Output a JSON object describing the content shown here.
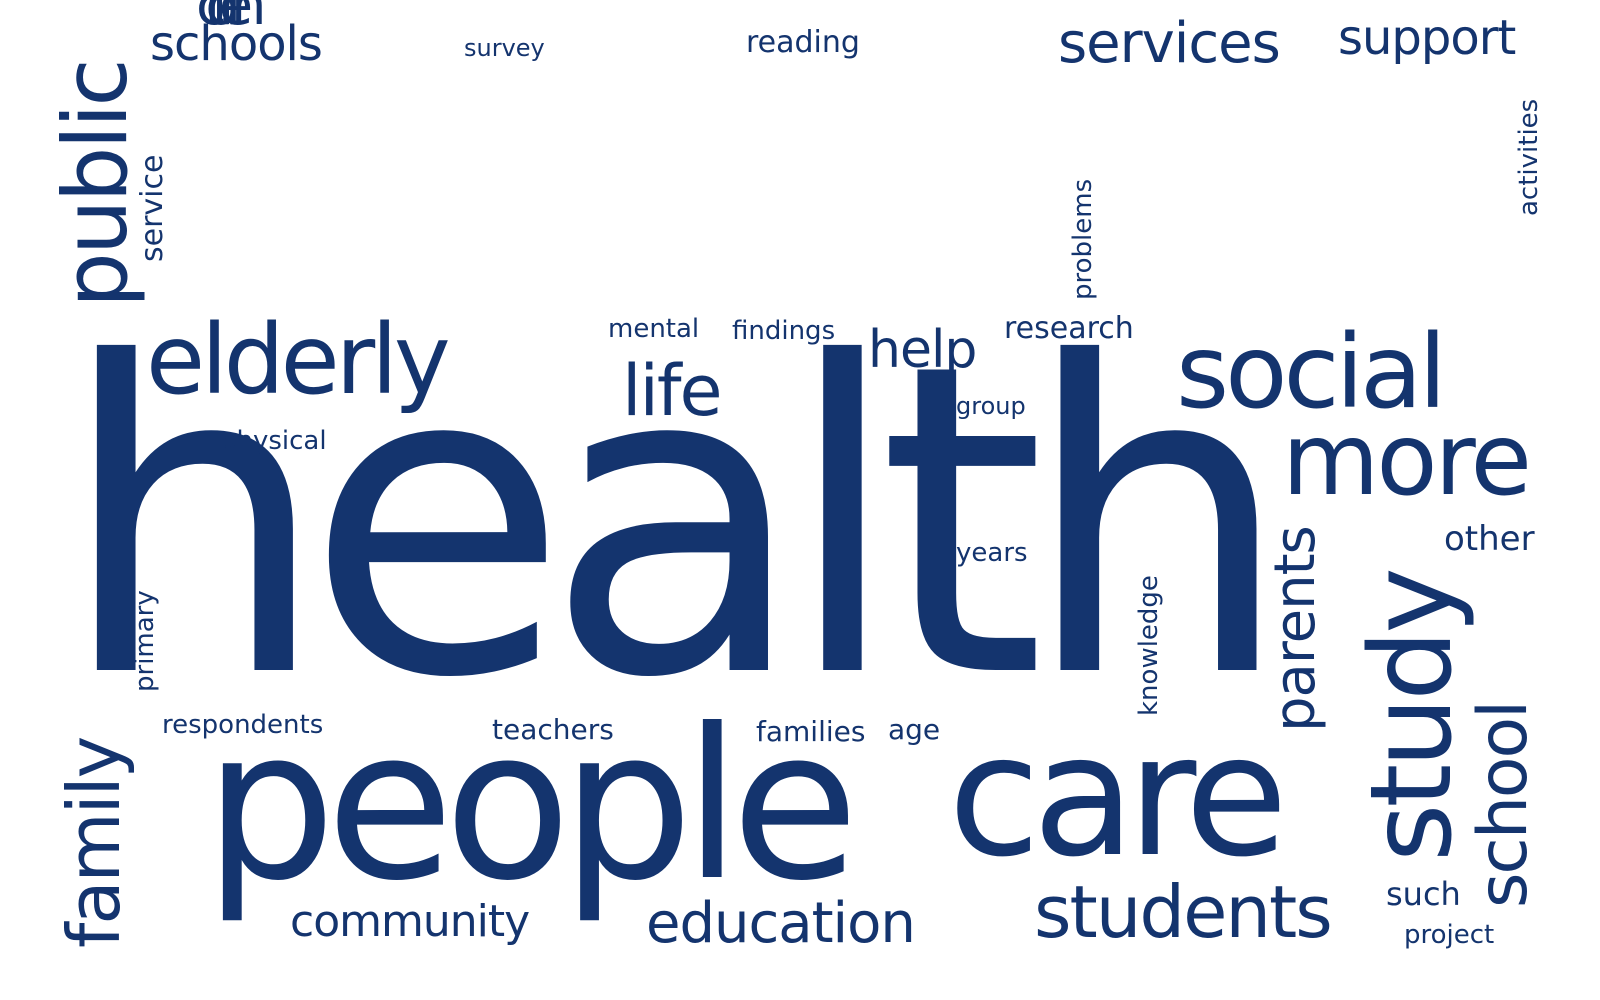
{
  "word_cloud": {
    "color": "#14346e",
    "background": "#ffffff",
    "words": {
      "children": "children",
      "health": "health",
      "people": "people",
      "care": "care",
      "elderly": "elderly",
      "social": "social",
      "more": "more",
      "public": "public",
      "study": "study",
      "students": "students",
      "school": "school",
      "parents": "parents",
      "family": "family",
      "education": "education",
      "community": "community",
      "services": "services",
      "support": "support",
      "schools": "schools",
      "life": "life",
      "help": "help",
      "research": "research",
      "findings": "findings",
      "mental": "mental",
      "reading": "reading",
      "survey": "survey",
      "service": "service",
      "activities": "activities",
      "problems": "problems",
      "group": "group",
      "years": "years",
      "physical": "physical",
      "other": "other",
      "knowledge": "knowledge",
      "primary": "primary",
      "respondents": "respondents",
      "teachers": "teachers",
      "families": "families",
      "age": "age",
      "such": "such",
      "project": "project"
    }
  }
}
